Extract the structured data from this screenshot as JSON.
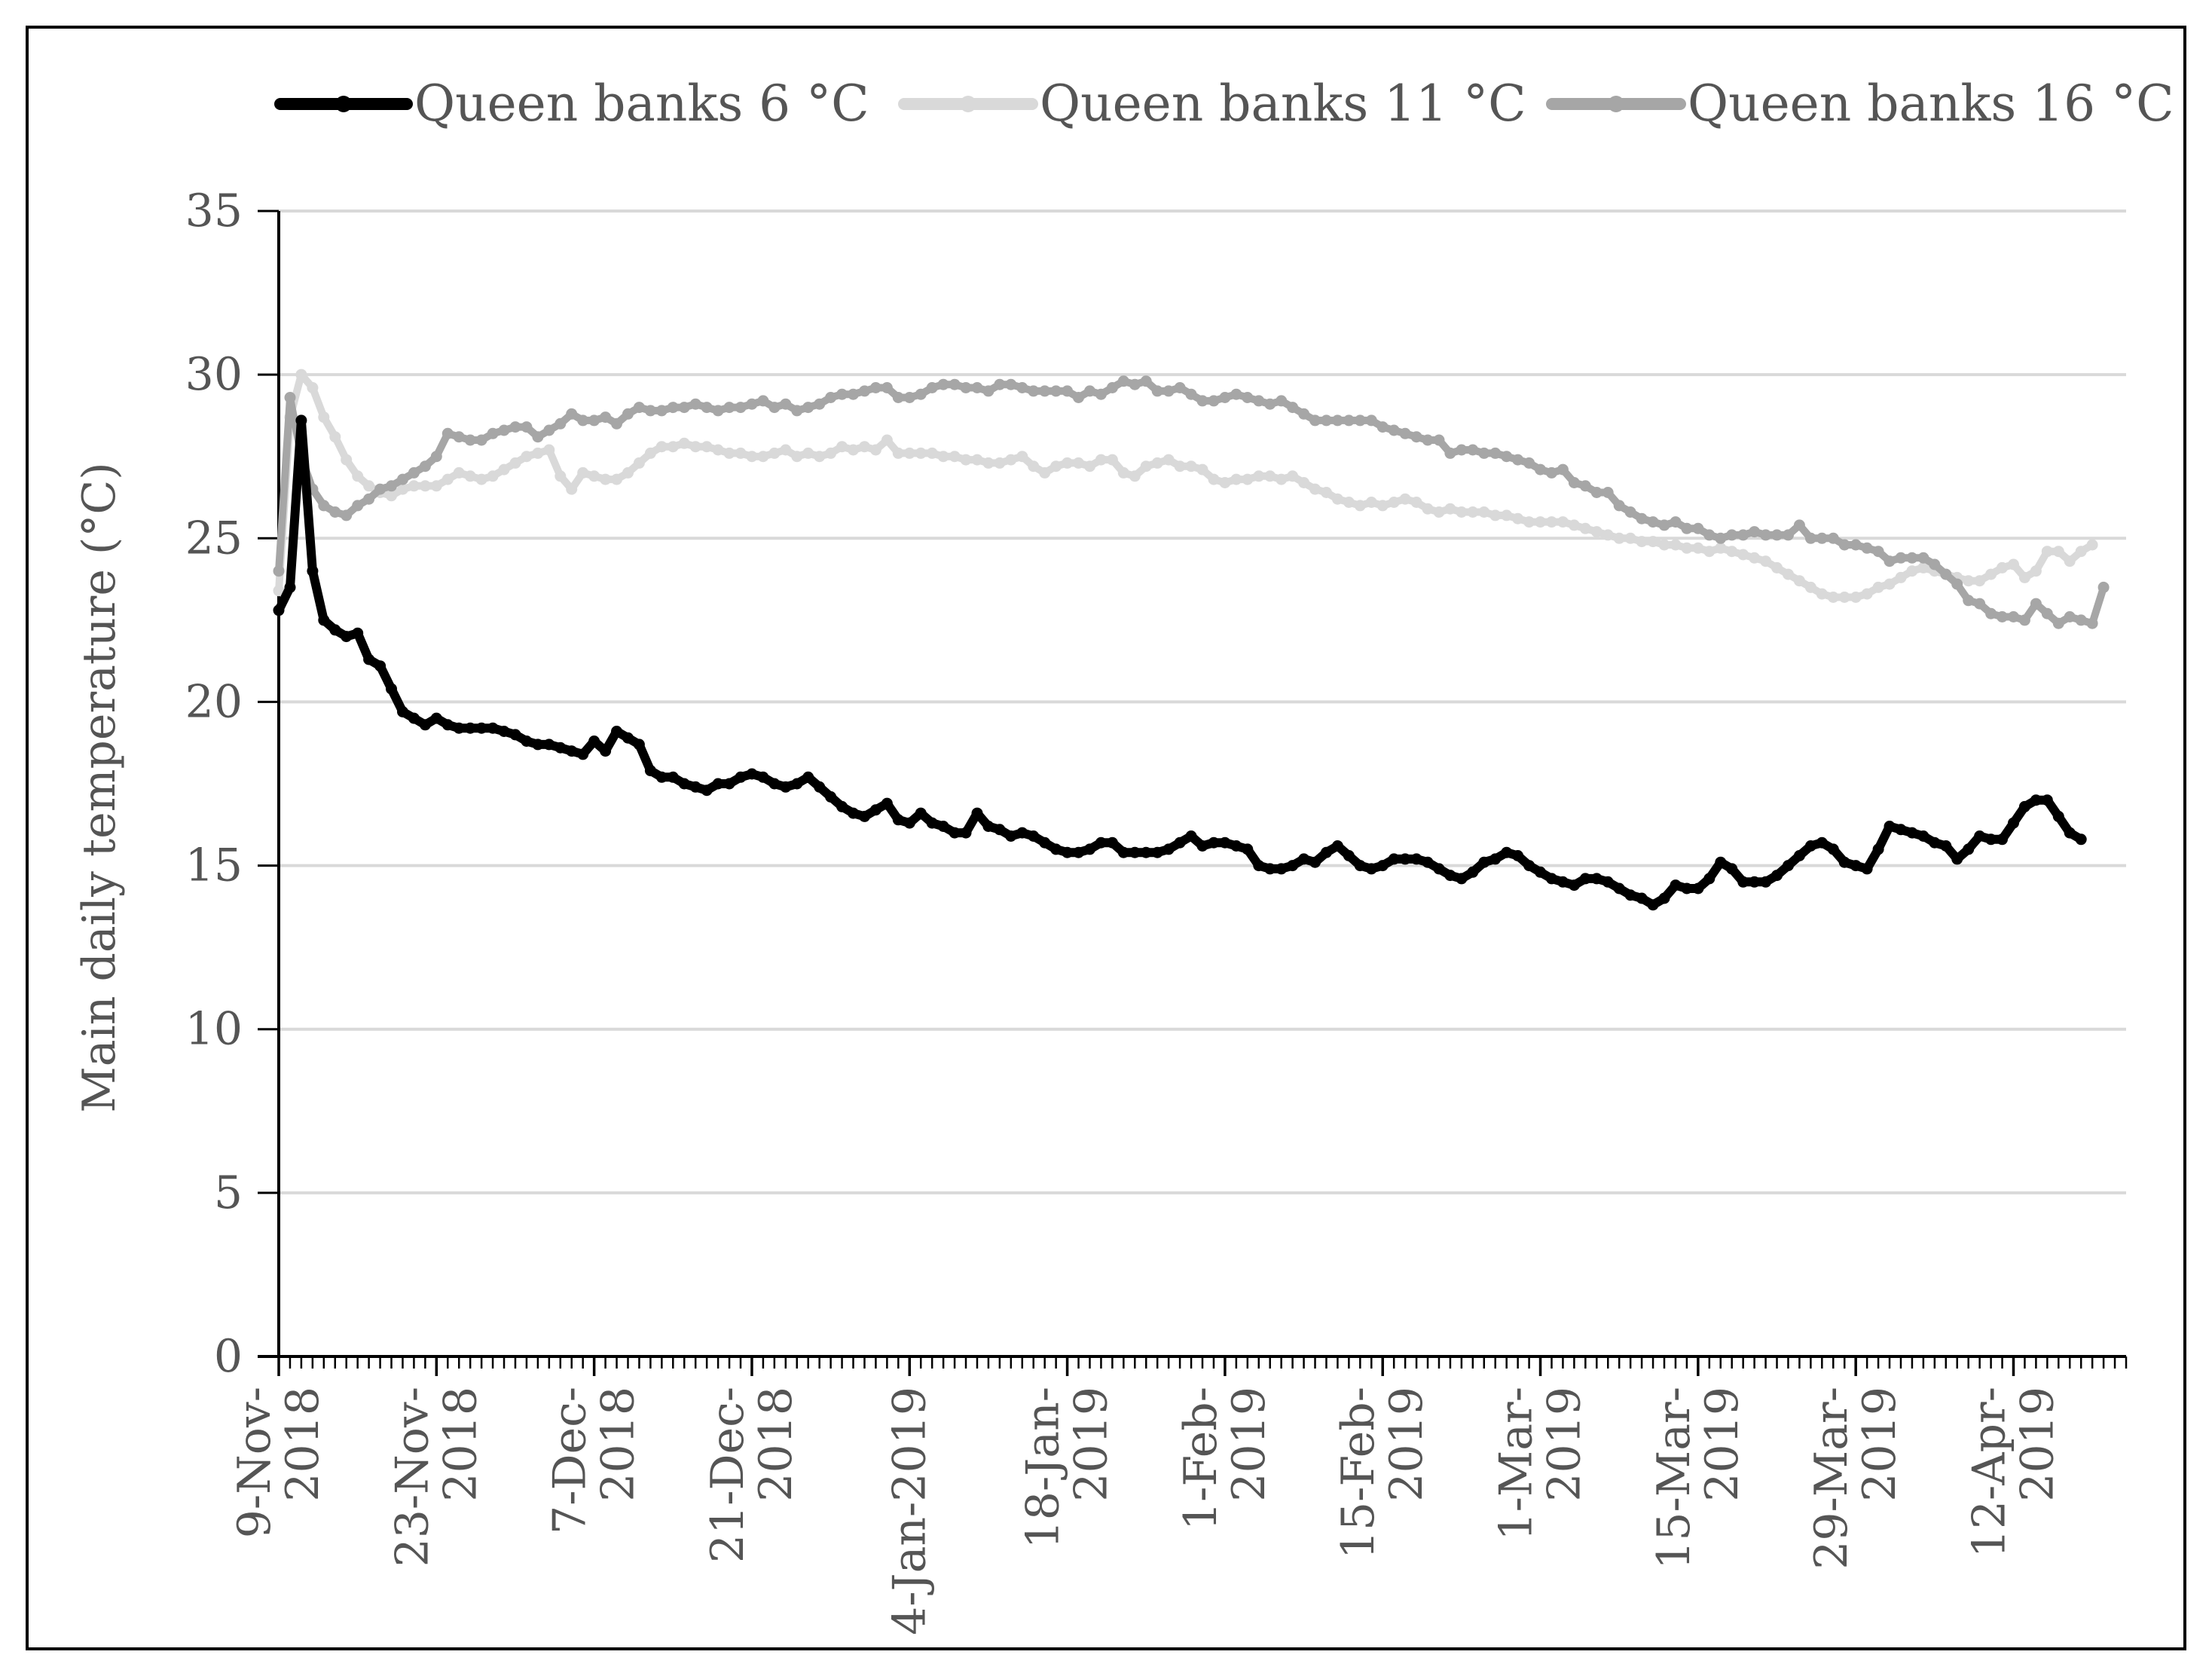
{
  "chart_data": {
    "type": "line",
    "title": "",
    "xlabel": "",
    "ylabel": "Main daily temperature (°C)",
    "ylim": [
      0,
      35
    ],
    "yticks": [
      "0",
      "5",
      "10",
      "15",
      "20",
      "25",
      "30",
      "35"
    ],
    "grid": "horizontal",
    "legend_position": "top",
    "xlim": [
      "2018-11-09",
      "2019-04-22"
    ],
    "xticks": [
      {
        "date": "2018-11-09",
        "lines": [
          "9-Nov-",
          "2018"
        ]
      },
      {
        "date": "2018-11-23",
        "lines": [
          "23-Nov-",
          "2018"
        ]
      },
      {
        "date": "2018-12-07",
        "lines": [
          "7-Dec-",
          "2018"
        ]
      },
      {
        "date": "2018-12-21",
        "lines": [
          "21-Dec-",
          "2018"
        ]
      },
      {
        "date": "2019-01-04",
        "lines": [
          "4-Jan-2019"
        ]
      },
      {
        "date": "2019-01-18",
        "lines": [
          "18-Jan-",
          "2019"
        ]
      },
      {
        "date": "2019-02-01",
        "lines": [
          "1-Feb-",
          "2019"
        ]
      },
      {
        "date": "2019-02-15",
        "lines": [
          "15-Feb-",
          "2019"
        ]
      },
      {
        "date": "2019-03-01",
        "lines": [
          "1-Mar-",
          "2019"
        ]
      },
      {
        "date": "2019-03-15",
        "lines": [
          "15-Mar-",
          "2019"
        ]
      },
      {
        "date": "2019-03-29",
        "lines": [
          "29-Mar-",
          "2019"
        ]
      },
      {
        "date": "2019-04-12",
        "lines": [
          "12-Apr-",
          "2019"
        ]
      }
    ],
    "x_start": "2018-11-09",
    "x_step_days": 1,
    "series": [
      {
        "name": "Queen banks 6 °C",
        "color": "#000000",
        "values": [
          22.8,
          23.5,
          28.6,
          24.0,
          22.5,
          22.2,
          22.0,
          22.1,
          21.3,
          21.1,
          20.4,
          19.7,
          19.5,
          19.3,
          19.5,
          19.3,
          19.2,
          19.2,
          19.2,
          19.2,
          19.1,
          19.0,
          18.8,
          18.7,
          18.7,
          18.6,
          18.5,
          18.4,
          18.8,
          18.5,
          19.1,
          18.9,
          18.7,
          17.9,
          17.7,
          17.7,
          17.5,
          17.4,
          17.3,
          17.5,
          17.5,
          17.7,
          17.8,
          17.7,
          17.5,
          17.4,
          17.5,
          17.7,
          17.4,
          17.1,
          16.8,
          16.6,
          16.5,
          16.7,
          16.9,
          16.4,
          16.3,
          16.6,
          16.3,
          16.2,
          16.0,
          16.0,
          16.6,
          16.2,
          16.1,
          15.9,
          16.0,
          15.9,
          15.7,
          15.5,
          15.4,
          15.4,
          15.5,
          15.7,
          15.7,
          15.4,
          15.4,
          15.4,
          15.4,
          15.5,
          15.7,
          15.9,
          15.6,
          15.7,
          15.7,
          15.6,
          15.5,
          15.0,
          14.9,
          14.9,
          15.0,
          15.2,
          15.1,
          15.4,
          15.6,
          15.3,
          15.0,
          14.9,
          15.0,
          15.2,
          15.2,
          15.2,
          15.1,
          14.9,
          14.7,
          14.6,
          14.8,
          15.1,
          15.2,
          15.4,
          15.3,
          15.0,
          14.8,
          14.6,
          14.5,
          14.4,
          14.6,
          14.6,
          14.5,
          14.3,
          14.1,
          14.0,
          13.8,
          14.0,
          14.4,
          14.3,
          14.3,
          14.6,
          15.1,
          14.9,
          14.5,
          14.5,
          14.5,
          14.7,
          15.0,
          15.3,
          15.6,
          15.7,
          15.5,
          15.1,
          15.0,
          14.9,
          15.5,
          16.2,
          16.1,
          16.0,
          15.9,
          15.7,
          15.6,
          15.2,
          15.5,
          15.9,
          15.8,
          15.8,
          16.3,
          16.8,
          17.0,
          17.0,
          16.5,
          16.0,
          15.8
        ]
      },
      {
        "name": "Queen banks 11 °C",
        "color": "#d9d9d9",
        "values": [
          23.4,
          28.7,
          30.0,
          29.6,
          28.7,
          28.1,
          27.4,
          26.9,
          26.6,
          26.4,
          26.3,
          26.5,
          26.6,
          26.6,
          26.6,
          26.8,
          27.0,
          26.9,
          26.8,
          26.9,
          27.1,
          27.3,
          27.5,
          27.6,
          27.7,
          26.9,
          26.5,
          27.0,
          26.9,
          26.8,
          26.8,
          27.0,
          27.3,
          27.6,
          27.8,
          27.8,
          27.9,
          27.8,
          27.8,
          27.7,
          27.6,
          27.6,
          27.5,
          27.5,
          27.6,
          27.7,
          27.5,
          27.6,
          27.5,
          27.6,
          27.8,
          27.7,
          27.8,
          27.7,
          28.0,
          27.6,
          27.6,
          27.6,
          27.6,
          27.5,
          27.5,
          27.4,
          27.4,
          27.3,
          27.3,
          27.4,
          27.5,
          27.2,
          27.0,
          27.2,
          27.3,
          27.3,
          27.2,
          27.4,
          27.4,
          27.0,
          26.9,
          27.2,
          27.3,
          27.4,
          27.2,
          27.2,
          27.1,
          26.8,
          26.7,
          26.8,
          26.8,
          26.9,
          26.9,
          26.8,
          26.9,
          26.7,
          26.5,
          26.4,
          26.2,
          26.1,
          26.0,
          26.1,
          26.0,
          26.1,
          26.2,
          26.1,
          25.9,
          25.8,
          25.9,
          25.8,
          25.8,
          25.8,
          25.7,
          25.7,
          25.6,
          25.5,
          25.5,
          25.5,
          25.5,
          25.4,
          25.3,
          25.2,
          25.1,
          25.0,
          25.0,
          24.9,
          24.9,
          24.8,
          24.8,
          24.7,
          24.7,
          24.6,
          24.7,
          24.6,
          24.5,
          24.4,
          24.3,
          24.1,
          23.9,
          23.7,
          23.5,
          23.3,
          23.2,
          23.2,
          23.2,
          23.3,
          23.5,
          23.6,
          23.8,
          24.0,
          24.1,
          24.0,
          23.9,
          23.8,
          23.7,
          23.7,
          23.9,
          24.1,
          24.2,
          23.8,
          24.0,
          24.6,
          24.6,
          24.3,
          24.6,
          24.8
        ]
      },
      {
        "name": "Queen banks 16 °C",
        "color": "#a6a6a6",
        "values": [
          24.0,
          29.3,
          27.5,
          26.5,
          26.0,
          25.8,
          25.7,
          26.0,
          26.2,
          26.5,
          26.6,
          26.8,
          27.0,
          27.2,
          27.5,
          28.2,
          28.1,
          28.0,
          28.0,
          28.2,
          28.3,
          28.4,
          28.4,
          28.1,
          28.3,
          28.5,
          28.8,
          28.6,
          28.6,
          28.7,
          28.5,
          28.8,
          29.0,
          28.9,
          28.9,
          29.0,
          29.0,
          29.1,
          29.0,
          28.9,
          29.0,
          29.0,
          29.1,
          29.2,
          29.0,
          29.1,
          28.9,
          29.0,
          29.1,
          29.3,
          29.4,
          29.4,
          29.5,
          29.6,
          29.6,
          29.3,
          29.3,
          29.4,
          29.6,
          29.7,
          29.7,
          29.6,
          29.6,
          29.5,
          29.7,
          29.7,
          29.6,
          29.5,
          29.5,
          29.5,
          29.5,
          29.3,
          29.5,
          29.4,
          29.6,
          29.8,
          29.7,
          29.8,
          29.5,
          29.5,
          29.6,
          29.4,
          29.2,
          29.2,
          29.3,
          29.4,
          29.3,
          29.2,
          29.1,
          29.2,
          29.0,
          28.8,
          28.6,
          28.6,
          28.6,
          28.6,
          28.6,
          28.6,
          28.4,
          28.3,
          28.2,
          28.1,
          28.0,
          28.0,
          27.6,
          27.7,
          27.7,
          27.6,
          27.6,
          27.5,
          27.4,
          27.3,
          27.1,
          27.0,
          27.1,
          26.7,
          26.6,
          26.4,
          26.4,
          26.0,
          25.8,
          25.6,
          25.5,
          25.4,
          25.5,
          25.3,
          25.3,
          25.1,
          25.0,
          25.1,
          25.1,
          25.2,
          25.1,
          25.1,
          25.1,
          25.4,
          25.0,
          25.0,
          25.0,
          24.8,
          24.8,
          24.7,
          24.6,
          24.3,
          24.4,
          24.4,
          24.4,
          24.2,
          23.9,
          23.6,
          23.1,
          23.0,
          22.7,
          22.6,
          22.6,
          22.5,
          23.0,
          22.7,
          22.4,
          22.6,
          22.5,
          22.4,
          23.5
        ]
      }
    ]
  }
}
